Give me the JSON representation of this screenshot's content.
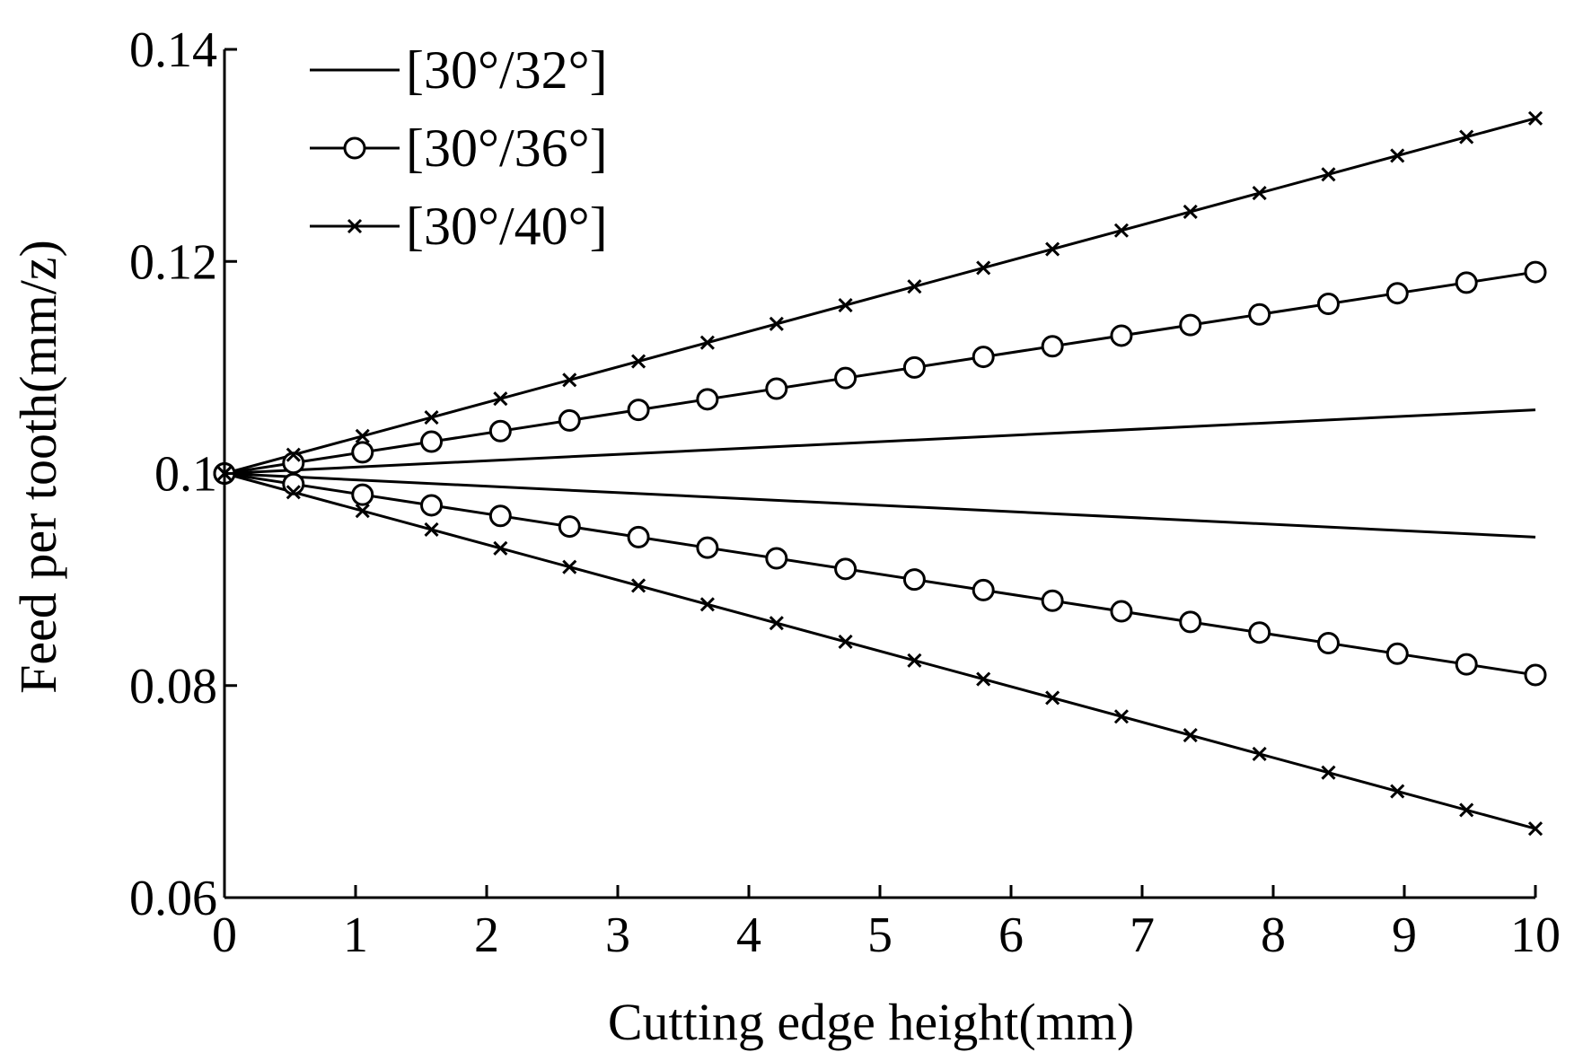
{
  "chart_data": {
    "type": "line",
    "title": "",
    "xlabel": "Cutting edge height(mm)",
    "ylabel": "Feed per tooth(mm/z)",
    "xlim": [
      0,
      10
    ],
    "ylim": [
      0.06,
      0.14
    ],
    "xticks": [
      0,
      1,
      2,
      3,
      4,
      5,
      6,
      7,
      8,
      9,
      10
    ],
    "xtick_labels": [
      "0",
      "1",
      "2",
      "3",
      "4",
      "5",
      "6",
      "7",
      "8",
      "9",
      "10"
    ],
    "yticks": [
      0.06,
      0.08,
      0.1,
      0.12,
      0.14
    ],
    "ytick_labels": [
      "0.06",
      "0.08",
      "0.1",
      "0.12",
      "0.14"
    ],
    "grid": false,
    "legend_position": "top-left",
    "marker_x": [
      0,
      0.526,
      1.053,
      1.579,
      2.105,
      2.632,
      3.158,
      3.684,
      4.211,
      4.737,
      5.263,
      5.789,
      6.316,
      6.842,
      7.368,
      7.895,
      8.421,
      8.947,
      9.474,
      10
    ],
    "series": [
      {
        "name": "[30°/32°]",
        "marker": "none",
        "color": "#000000",
        "upper": [
          0,
          0.1,
          10,
          0.106
        ],
        "lower": [
          0,
          0.1,
          10,
          0.094
        ]
      },
      {
        "name": "[30°/36°]",
        "marker": "circle",
        "color": "#000000",
        "upper": [
          0,
          0.1,
          10,
          0.119
        ],
        "lower": [
          0,
          0.1,
          10,
          0.081
        ]
      },
      {
        "name": "[30°/40°]",
        "marker": "x",
        "color": "#000000",
        "upper": [
          0,
          0.1,
          10,
          0.1335
        ],
        "lower": [
          0,
          0.1,
          10,
          0.0665
        ]
      }
    ]
  }
}
